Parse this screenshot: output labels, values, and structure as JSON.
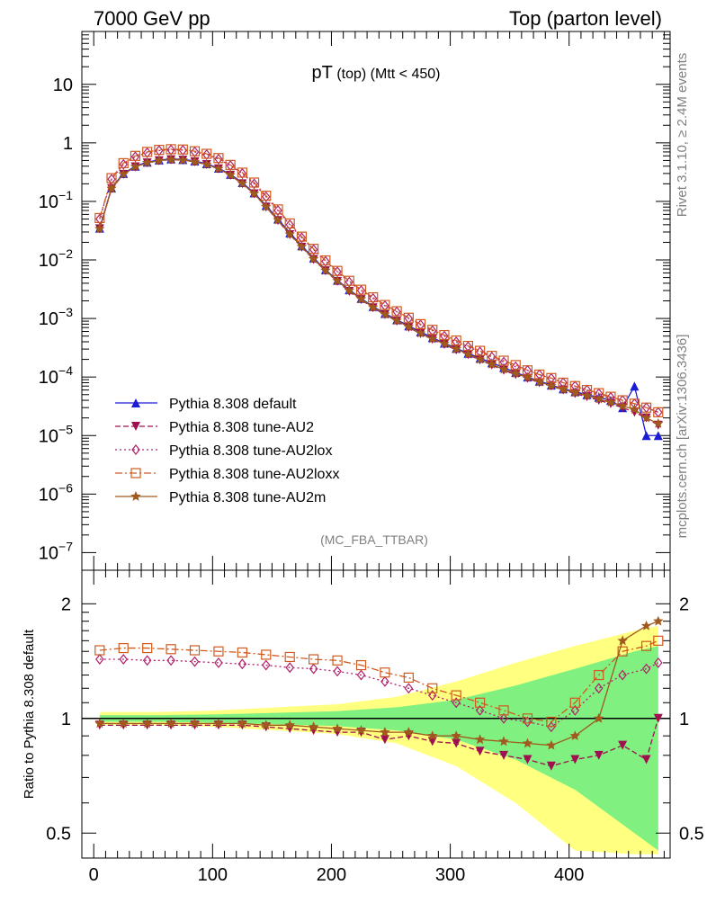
{
  "header": {
    "left": "7000 GeV pp",
    "right": "Top (parton level)"
  },
  "side_labels": {
    "top": "Rivet 3.1.10, ≥ 2.4M events",
    "bottom": "mcplots.cern.ch [arXiv:1306.3436]"
  },
  "chart_data": [
    {
      "type": "line",
      "panel": "main",
      "title_main": "pT",
      "title_sub": " (top) (Mtt < 450)",
      "watermark": "(MC_FBA_TTBAR)",
      "xlim": [
        -10,
        485
      ],
      "ylog": true,
      "ylim": [
        5e-08,
        80
      ],
      "yticks": [
        {
          "v": 10,
          "b": "10",
          "e": ""
        },
        {
          "v": 1,
          "b": "1",
          "e": ""
        },
        {
          "v": 0.1,
          "b": "10",
          "e": "−1"
        },
        {
          "v": 0.01,
          "b": "10",
          "e": "−2"
        },
        {
          "v": 0.001,
          "b": "10",
          "e": "−3"
        },
        {
          "v": 0.0001,
          "b": "10",
          "e": "−4"
        },
        {
          "v": 1e-05,
          "b": "10",
          "e": "−5"
        },
        {
          "v": 1e-06,
          "b": "10",
          "e": "−6"
        },
        {
          "v": 1e-07,
          "b": "10",
          "e": "−7"
        }
      ],
      "series": [
        {
          "name": "Pythia 8.308 default",
          "color": "#1c1cd6",
          "marker": "triangle-up",
          "dash": "",
          "x": [
            5,
            15,
            25,
            35,
            45,
            55,
            65,
            75,
            85,
            95,
            105,
            115,
            125,
            135,
            145,
            155,
            165,
            175,
            185,
            195,
            205,
            215,
            225,
            235,
            245,
            255,
            265,
            275,
            285,
            295,
            305,
            315,
            325,
            335,
            345,
            355,
            365,
            375,
            385,
            395,
            405,
            415,
            425,
            435,
            445,
            455,
            465,
            475
          ],
          "y": [
            0.035,
            0.17,
            0.3,
            0.4,
            0.47,
            0.51,
            0.53,
            0.52,
            0.49,
            0.44,
            0.37,
            0.29,
            0.21,
            0.14,
            0.085,
            0.05,
            0.029,
            0.0175,
            0.0108,
            0.0068,
            0.0045,
            0.0031,
            0.0022,
            0.0016,
            0.00122,
            0.00095,
            0.00075,
            0.00059,
            0.00047,
            0.00038,
            0.00031,
            0.000255,
            0.00021,
            0.000175,
            0.000145,
            0.00012,
            0.0001,
            8.5e-05,
            7.3e-05,
            6.3e-05,
            5.6e-05,
            5e-05,
            4.5e-05,
            4e-05,
            3e-05,
            7e-05,
            1e-05,
            1e-05
          ]
        },
        {
          "name": "Pythia 8.308 tune-AU2",
          "color": "#a01050",
          "marker": "triangle-down",
          "dash": "6,3",
          "x": [
            5,
            15,
            25,
            35,
            45,
            55,
            65,
            75,
            85,
            95,
            105,
            115,
            125,
            135,
            145,
            155,
            165,
            175,
            185,
            195,
            205,
            215,
            225,
            235,
            245,
            255,
            265,
            275,
            285,
            295,
            305,
            315,
            325,
            335,
            345,
            355,
            365,
            375,
            385,
            395,
            405,
            415,
            425,
            435,
            445,
            455,
            465,
            475
          ],
          "y": [
            0.034,
            0.165,
            0.29,
            0.39,
            0.455,
            0.495,
            0.515,
            0.505,
            0.475,
            0.425,
            0.36,
            0.28,
            0.2,
            0.135,
            0.08,
            0.047,
            0.027,
            0.0165,
            0.0102,
            0.0065,
            0.0043,
            0.0029,
            0.0021,
            0.00152,
            0.00116,
            0.0009,
            0.0007,
            0.00055,
            0.00044,
            0.00036,
            0.00029,
            0.00024,
            0.000195,
            0.00016,
            0.00013,
            0.00011,
            9.5e-05,
            8e-05,
            7e-05,
            6e-05,
            5.2e-05,
            4.6e-05,
            4e-05,
            3.5e-05,
            3e-05,
            2.5e-05,
            2e-05,
            1.5e-05
          ]
        },
        {
          "name": "Pythia 8.308 tune-AU2lox",
          "color": "#b0206a",
          "marker": "diamond-open",
          "dash": "2,3",
          "x": [
            5,
            15,
            25,
            35,
            45,
            55,
            65,
            75,
            85,
            95,
            105,
            115,
            125,
            135,
            145,
            155,
            165,
            175,
            185,
            195,
            205,
            215,
            225,
            235,
            245,
            255,
            265,
            275,
            285,
            295,
            305,
            315,
            325,
            335,
            345,
            355,
            365,
            375,
            385,
            395,
            405,
            415,
            425,
            435,
            445,
            455,
            465,
            475
          ],
          "y": [
            0.05,
            0.24,
            0.43,
            0.58,
            0.68,
            0.74,
            0.76,
            0.75,
            0.7,
            0.63,
            0.53,
            0.41,
            0.3,
            0.2,
            0.12,
            0.07,
            0.04,
            0.024,
            0.015,
            0.0095,
            0.0063,
            0.0042,
            0.003,
            0.0022,
            0.00165,
            0.0013,
            0.001,
            0.00078,
            0.00062,
            0.0005,
            0.0004,
            0.00033,
            0.00027,
            0.00022,
            0.00018,
            0.00015,
            0.00013,
            0.00011,
            9.5e-05,
            8e-05,
            7e-05,
            6e-05,
            5.2e-05,
            4.5e-05,
            4e-05,
            3.5e-05,
            3e-05,
            2.5e-05
          ]
        },
        {
          "name": "Pythia 8.308 tune-AU2loxx",
          "color": "#d05a1e",
          "marker": "square-open",
          "dash": "8,3,2,3",
          "x": [
            5,
            15,
            25,
            35,
            45,
            55,
            65,
            75,
            85,
            95,
            105,
            115,
            125,
            135,
            145,
            155,
            165,
            175,
            185,
            195,
            205,
            215,
            225,
            235,
            245,
            255,
            265,
            275,
            285,
            295,
            305,
            315,
            325,
            335,
            345,
            355,
            365,
            375,
            385,
            395,
            405,
            415,
            425,
            435,
            445,
            455,
            465,
            475
          ],
          "y": [
            0.052,
            0.25,
            0.45,
            0.6,
            0.7,
            0.76,
            0.78,
            0.77,
            0.72,
            0.65,
            0.55,
            0.42,
            0.31,
            0.21,
            0.125,
            0.073,
            0.042,
            0.025,
            0.0155,
            0.0098,
            0.0065,
            0.0044,
            0.0031,
            0.0023,
            0.0017,
            0.00133,
            0.00103,
            0.0008,
            0.00064,
            0.00052,
            0.00042,
            0.00034,
            0.00028,
            0.00023,
            0.00019,
            0.00016,
            0.00013,
            0.00011,
            9.6e-05,
            8e-05,
            7e-05,
            6e-05,
            5.3e-05,
            4.6e-05,
            4e-05,
            3.5e-05,
            3e-05,
            2.5e-05
          ]
        },
        {
          "name": "Pythia 8.308 tune-AU2m",
          "color": "#a05a1e",
          "marker": "star",
          "dash": "",
          "x": [
            5,
            15,
            25,
            35,
            45,
            55,
            65,
            75,
            85,
            95,
            105,
            115,
            125,
            135,
            145,
            155,
            165,
            175,
            185,
            195,
            205,
            215,
            225,
            235,
            245,
            255,
            265,
            275,
            285,
            295,
            305,
            315,
            325,
            335,
            345,
            355,
            365,
            375,
            385,
            395,
            405,
            415,
            425,
            435,
            445,
            455,
            465,
            475
          ],
          "y": [
            0.034,
            0.166,
            0.292,
            0.392,
            0.457,
            0.497,
            0.517,
            0.507,
            0.477,
            0.427,
            0.362,
            0.282,
            0.202,
            0.136,
            0.081,
            0.048,
            0.0275,
            0.0168,
            0.0104,
            0.0066,
            0.0044,
            0.003,
            0.00215,
            0.00155,
            0.00118,
            0.00092,
            0.00072,
            0.00056,
            0.00045,
            0.00037,
            0.0003,
            0.000245,
            0.0002,
            0.000165,
            0.000135,
            0.000115,
            9.8e-05,
            8.2e-05,
            7.1e-05,
            6.1e-05,
            5.4e-05,
            4.8e-05,
            4.2e-05,
            3.7e-05,
            3.2e-05,
            2.8e-05,
            2e-05,
            1.6e-05
          ]
        }
      ]
    },
    {
      "type": "line",
      "panel": "ratio",
      "ylabel": "Ratio to Pythia 8.308 default",
      "xlim": [
        -10,
        485
      ],
      "xticks": [
        0,
        100,
        200,
        300,
        400
      ],
      "ylog": true,
      "ylim": [
        0.43,
        2.45
      ],
      "yticks": [
        {
          "v": 2,
          "l": "2"
        },
        {
          "v": 1,
          "l": "1"
        },
        {
          "v": 0.5,
          "l": "0.5"
        }
      ],
      "bands": [
        {
          "name": "outer",
          "color": "#ffff80",
          "x": [
            5,
            55,
            105,
            155,
            205,
            255,
            305,
            355,
            405,
            455,
            475
          ],
          "hw": [
            0.04,
            0.04,
            0.05,
            0.07,
            0.09,
            0.14,
            0.25,
            0.4,
            0.55,
            0.7,
            0.75
          ]
        },
        {
          "name": "inner",
          "color": "#80f080",
          "x": [
            5,
            55,
            105,
            155,
            205,
            255,
            305,
            355,
            405,
            455,
            475
          ],
          "hw": [
            0.02,
            0.02,
            0.025,
            0.035,
            0.045,
            0.07,
            0.12,
            0.22,
            0.35,
            0.5,
            0.55
          ]
        }
      ],
      "series": [
        {
          "name": "Pythia 8.308 tune-AU2",
          "color": "#a01050",
          "marker": "triangle-down",
          "dash": "6,3",
          "x": [
            5,
            25,
            45,
            65,
            85,
            105,
            125,
            145,
            165,
            185,
            205,
            225,
            245,
            265,
            285,
            305,
            325,
            345,
            365,
            385,
            405,
            425,
            445,
            465,
            475
          ],
          "y": [
            0.96,
            0.96,
            0.96,
            0.96,
            0.96,
            0.96,
            0.96,
            0.95,
            0.94,
            0.93,
            0.92,
            0.92,
            0.88,
            0.9,
            0.87,
            0.86,
            0.82,
            0.8,
            0.78,
            0.75,
            0.78,
            0.8,
            0.85,
            0.78,
            1.0
          ]
        },
        {
          "name": "Pythia 8.308 tune-AU2lox",
          "color": "#b0206a",
          "marker": "diamond-open",
          "dash": "2,3",
          "x": [
            5,
            25,
            45,
            65,
            85,
            105,
            125,
            145,
            165,
            185,
            205,
            225,
            245,
            265,
            285,
            305,
            325,
            345,
            365,
            385,
            405,
            425,
            445,
            465,
            475
          ],
          "y": [
            1.43,
            1.43,
            1.42,
            1.42,
            1.41,
            1.4,
            1.39,
            1.38,
            1.36,
            1.35,
            1.33,
            1.3,
            1.25,
            1.2,
            1.15,
            1.1,
            1.05,
            1.0,
            0.98,
            0.95,
            1.05,
            1.2,
            1.3,
            1.35,
            1.4
          ]
        },
        {
          "name": "Pythia 8.308 tune-AU2loxx",
          "color": "#d05a1e",
          "marker": "square-open",
          "dash": "8,3,2,3",
          "x": [
            5,
            25,
            45,
            65,
            85,
            105,
            125,
            145,
            165,
            185,
            205,
            225,
            245,
            265,
            285,
            305,
            325,
            345,
            365,
            385,
            405,
            425,
            445,
            465,
            475
          ],
          "y": [
            1.51,
            1.53,
            1.53,
            1.52,
            1.51,
            1.5,
            1.49,
            1.47,
            1.45,
            1.43,
            1.42,
            1.38,
            1.32,
            1.28,
            1.2,
            1.15,
            1.1,
            1.05,
            1.0,
            0.98,
            1.1,
            1.3,
            1.5,
            1.55,
            1.6
          ]
        },
        {
          "name": "Pythia 8.308 tune-AU2m",
          "color": "#a05a1e",
          "marker": "star",
          "dash": "",
          "x": [
            5,
            25,
            45,
            65,
            85,
            105,
            125,
            145,
            165,
            185,
            205,
            225,
            245,
            265,
            285,
            305,
            325,
            345,
            365,
            385,
            405,
            425,
            445,
            465,
            475
          ],
          "y": [
            0.97,
            0.97,
            0.97,
            0.97,
            0.97,
            0.97,
            0.97,
            0.96,
            0.96,
            0.95,
            0.94,
            0.93,
            0.92,
            0.92,
            0.9,
            0.9,
            0.88,
            0.87,
            0.86,
            0.85,
            0.9,
            1.0,
            1.6,
            1.75,
            1.8
          ]
        }
      ]
    }
  ]
}
